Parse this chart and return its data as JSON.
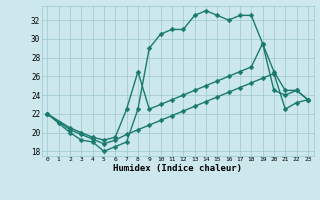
{
  "xlabel": "Humidex (Indice chaleur)",
  "xlim": [
    -0.5,
    23.5
  ],
  "ylim": [
    17.5,
    33.5
  ],
  "xticks": [
    0,
    1,
    2,
    3,
    4,
    5,
    6,
    7,
    8,
    9,
    10,
    11,
    12,
    13,
    14,
    15,
    16,
    17,
    18,
    19,
    20,
    21,
    22,
    23
  ],
  "yticks": [
    18,
    20,
    22,
    24,
    26,
    28,
    30,
    32
  ],
  "bg_color": "#cce8ec",
  "grid_color": "#9ac8ce",
  "line_color": "#1a7a6e",
  "line1_x": [
    0,
    1,
    2,
    3,
    4,
    5,
    6,
    7,
    8,
    9,
    10,
    11,
    12,
    13,
    14,
    15,
    16,
    17,
    18,
    19,
    20,
    21,
    22,
    23
  ],
  "line1_y": [
    22,
    21,
    20,
    19.2,
    19,
    18,
    18.5,
    19,
    22.5,
    29,
    30.5,
    31,
    31,
    32.5,
    33,
    32.5,
    32,
    32.5,
    32.5,
    29.5,
    24.5,
    24,
    24.5,
    23.5
  ],
  "line2_x": [
    0,
    2,
    3,
    4,
    5,
    6,
    7,
    8,
    9,
    10,
    11,
    12,
    13,
    14,
    15,
    16,
    17,
    18,
    19,
    20,
    21,
    22,
    23
  ],
  "line2_y": [
    22,
    20.5,
    20,
    19.5,
    19.2,
    19.5,
    22.5,
    26.5,
    22.5,
    23,
    23.5,
    24,
    24.5,
    25,
    25.5,
    26,
    26.5,
    27,
    29.5,
    26.5,
    24.5,
    24.5,
    23.5
  ],
  "line3_x": [
    0,
    2,
    3,
    4,
    5,
    6,
    7,
    8,
    9,
    10,
    11,
    12,
    13,
    14,
    15,
    16,
    17,
    18,
    19,
    20,
    21,
    22,
    23
  ],
  "line3_y": [
    22,
    20.3,
    19.8,
    19.3,
    18.8,
    19.2,
    19.8,
    20.3,
    20.8,
    21.3,
    21.8,
    22.3,
    22.8,
    23.3,
    23.8,
    24.3,
    24.8,
    25.3,
    25.8,
    26.3,
    22.5,
    23.2,
    23.5
  ],
  "marker": "D",
  "markersize": 2.5,
  "linewidth": 1.0,
  "figsize": [
    3.2,
    2.0
  ],
  "dpi": 100
}
